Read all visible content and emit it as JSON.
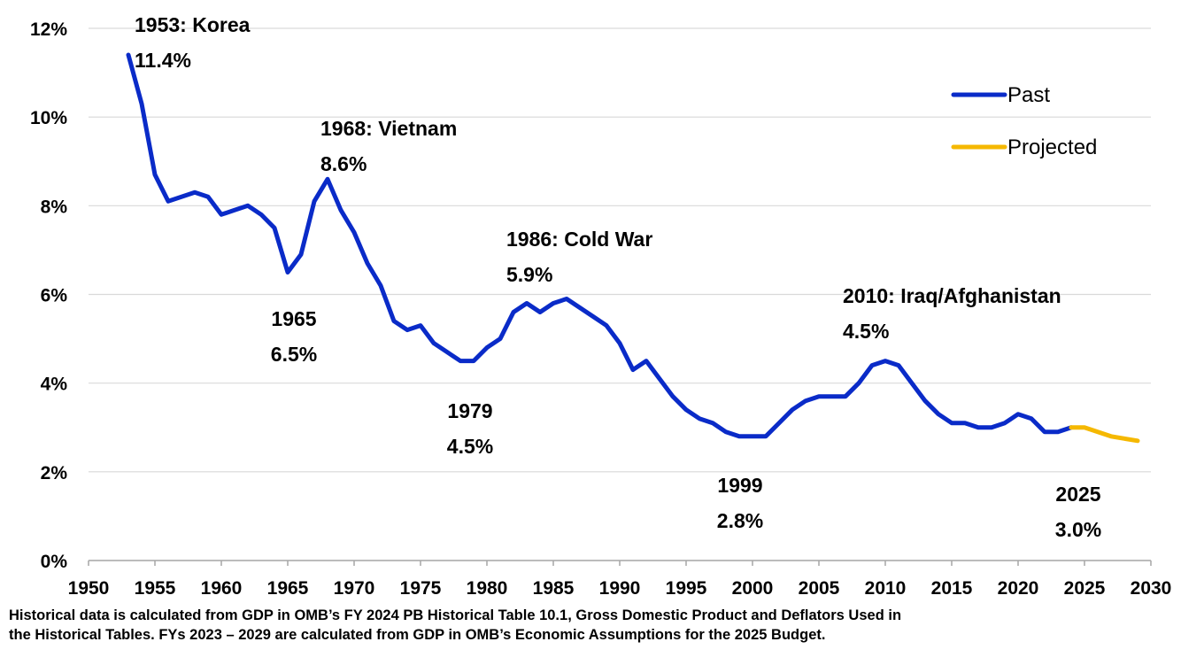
{
  "chart_data": {
    "type": "line",
    "x_range": [
      1950,
      2030
    ],
    "y_range": [
      0,
      12
    ],
    "x_ticks": [
      "1950",
      "1955",
      "1960",
      "1965",
      "1970",
      "1975",
      "1980",
      "1985",
      "1990",
      "1995",
      "2000",
      "2005",
      "2010",
      "2015",
      "2020",
      "2025",
      "2030"
    ],
    "y_ticks": [
      "0%",
      "2%",
      "4%",
      "6%",
      "8%",
      "10%",
      "12%"
    ],
    "grid": "horizontal",
    "legend_position": "top-right",
    "colors": {
      "past": "#0A2BC8",
      "projected": "#F5B800",
      "grid": "#D9D9D9",
      "axis": "#A6A6A6"
    },
    "series": [
      {
        "name": "Past",
        "x": [
          1953,
          1954,
          1955,
          1956,
          1957,
          1958,
          1959,
          1960,
          1961,
          1962,
          1963,
          1964,
          1965,
          1966,
          1967,
          1968,
          1969,
          1970,
          1971,
          1972,
          1973,
          1974,
          1975,
          1976,
          1977,
          1978,
          1979,
          1980,
          1981,
          1982,
          1983,
          1984,
          1985,
          1986,
          1987,
          1988,
          1989,
          1990,
          1991,
          1992,
          1993,
          1994,
          1995,
          1996,
          1997,
          1998,
          1999,
          2000,
          2001,
          2002,
          2003,
          2004,
          2005,
          2006,
          2007,
          2008,
          2009,
          2010,
          2011,
          2012,
          2013,
          2014,
          2015,
          2016,
          2017,
          2018,
          2019,
          2020,
          2021,
          2022,
          2023,
          2024
        ],
        "y": [
          11.4,
          10.3,
          8.7,
          8.1,
          8.2,
          8.3,
          8.2,
          7.8,
          7.9,
          8.0,
          7.8,
          7.5,
          6.5,
          6.9,
          8.1,
          8.6,
          7.9,
          7.4,
          6.7,
          6.2,
          5.4,
          5.2,
          5.3,
          4.9,
          4.7,
          4.5,
          4.5,
          4.8,
          5.0,
          5.6,
          5.8,
          5.6,
          5.8,
          5.9,
          5.7,
          5.5,
          5.3,
          4.9,
          4.3,
          4.5,
          4.1,
          3.7,
          3.4,
          3.2,
          3.1,
          2.9,
          2.8,
          2.8,
          2.8,
          3.1,
          3.4,
          3.6,
          3.7,
          3.7,
          3.7,
          4.0,
          4.4,
          4.5,
          4.4,
          4.0,
          3.6,
          3.3,
          3.1,
          3.1,
          3.0,
          3.0,
          3.1,
          3.3,
          3.2,
          2.9,
          2.9,
          3.0
        ]
      },
      {
        "name": "Projected",
        "x": [
          2024,
          2025,
          2026,
          2027,
          2028,
          2029
        ],
        "y": [
          3.0,
          3.0,
          2.9,
          2.8,
          2.75,
          2.7
        ]
      }
    ],
    "annotations": [
      {
        "line1": "1953: Korea",
        "line2": "11.4%",
        "x": 1953,
        "y": 11.4
      },
      {
        "line1": "1968: Vietnam",
        "line2": "8.6%",
        "x": 1968,
        "y": 8.6
      },
      {
        "line1": "1965",
        "line2": "6.5%",
        "x": 1965,
        "y": 6.5
      },
      {
        "line1": "1986: Cold War",
        "line2": "5.9%",
        "x": 1986,
        "y": 5.9
      },
      {
        "line1": "1979",
        "line2": "4.5%",
        "x": 1979,
        "y": 4.5
      },
      {
        "line1": "2010: Iraq/Afghanistan",
        "line2": "4.5%",
        "x": 2010,
        "y": 4.5
      },
      {
        "line1": "1999",
        "line2": "2.8%",
        "x": 1999,
        "y": 2.8
      },
      {
        "line1": "2025",
        "line2": "3.0%",
        "x": 2025,
        "y": 3.0
      }
    ]
  },
  "footnote": {
    "line1": "Historical data is calculated from GDP in OMB’s FY 2024 PB Historical Table 10.1, Gross Domestic Product and Deflators Used in",
    "line2": "the Historical Tables.  FYs 2023 – 2029 are calculated from GDP in OMB’s Economic Assumptions for the 2025 Budget."
  }
}
